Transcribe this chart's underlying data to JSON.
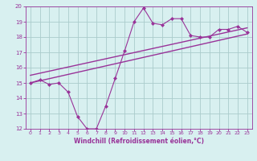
{
  "x_data": [
    0,
    1,
    2,
    3,
    4,
    5,
    6,
    7,
    8,
    9,
    10,
    11,
    12,
    13,
    14,
    15,
    16,
    17,
    18,
    19,
    20,
    21,
    22,
    23
  ],
  "y_data": [
    15.0,
    15.2,
    14.9,
    15.0,
    14.4,
    12.8,
    12.0,
    12.0,
    13.5,
    15.3,
    17.1,
    19.0,
    19.9,
    18.9,
    18.8,
    19.2,
    19.2,
    18.1,
    18.0,
    18.0,
    18.5,
    18.5,
    18.7,
    18.3
  ],
  "trend1_x": [
    0,
    23
  ],
  "trend1_y": [
    15.0,
    18.2
  ],
  "trend2_x": [
    0,
    23
  ],
  "trend2_y": [
    15.5,
    18.6
  ],
  "xlim": [
    -0.5,
    23.5
  ],
  "ylim": [
    12,
    20
  ],
  "yticks": [
    12,
    13,
    14,
    15,
    16,
    17,
    18,
    19,
    20
  ],
  "xticks": [
    0,
    1,
    2,
    3,
    4,
    5,
    6,
    7,
    8,
    9,
    10,
    11,
    12,
    13,
    14,
    15,
    16,
    17,
    18,
    19,
    20,
    21,
    22,
    23
  ],
  "xlabel": "Windchill (Refroidissement éolien,°C)",
  "line_color": "#993399",
  "bg_color": "#d8f0f0",
  "grid_color": "#aacccc",
  "text_color": "#993399",
  "tick_color": "#993399",
  "axis_color": "#993399",
  "marker": "D",
  "markersize": 2.0,
  "linewidth": 0.8,
  "trend_linewidth": 1.0,
  "xtick_fontsize": 4.5,
  "ytick_fontsize": 5.0,
  "xlabel_fontsize": 5.5
}
